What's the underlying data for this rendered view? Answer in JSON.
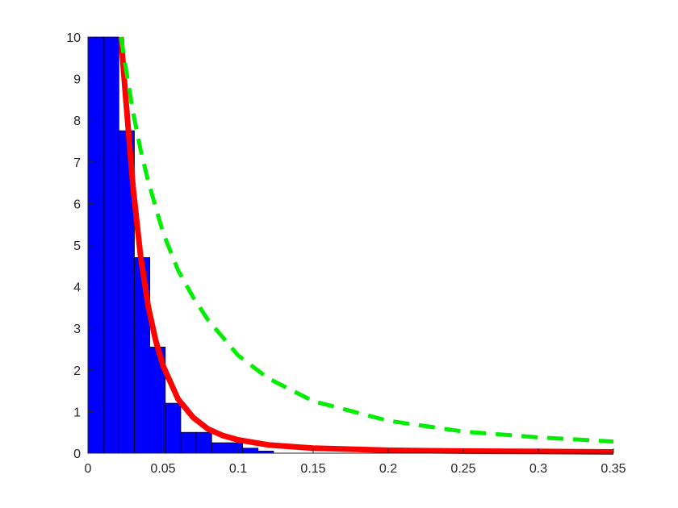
{
  "chart_data": {
    "type": "bar",
    "title": "",
    "xlabel": "",
    "ylabel": "",
    "xlim": [
      0,
      0.35
    ],
    "ylim": [
      0,
      10
    ],
    "grid": false,
    "legend": "none",
    "x_ticks": [
      "0",
      "0.05",
      "0.1",
      "0.15",
      "0.2",
      "0.25",
      "0.3",
      "0.35"
    ],
    "y_ticks": [
      "0",
      "1",
      "2",
      "3",
      "4",
      "5",
      "6",
      "7",
      "8",
      "9",
      "10"
    ],
    "histogram": {
      "bin_width": 0.0103,
      "bin_edges_start": 0,
      "values": [
        10,
        10,
        7.75,
        4.7,
        2.55,
        1.2,
        0.5,
        0.5,
        0.25,
        0.25,
        0.12,
        0.05
      ],
      "color": "#0000ff",
      "edge_color": "#000000"
    },
    "series": [
      {
        "style": "solid",
        "color": "#ff0000",
        "x": [
          0.022,
          0.025,
          0.03,
          0.035,
          0.04,
          0.045,
          0.05,
          0.06,
          0.07,
          0.08,
          0.09,
          0.1,
          0.12,
          0.15,
          0.2,
          0.25,
          0.3,
          0.35
        ],
        "y": [
          10,
          8.6,
          6.4,
          4.75,
          3.55,
          2.72,
          2.1,
          1.3,
          0.86,
          0.58,
          0.42,
          0.32,
          0.2,
          0.12,
          0.07,
          0.05,
          0.04,
          0.03
        ]
      },
      {
        "style": "dashed",
        "color": "#00ee00",
        "x": [
          0.022,
          0.025,
          0.03,
          0.035,
          0.04,
          0.05,
          0.06,
          0.07,
          0.08,
          0.1,
          0.12,
          0.15,
          0.2,
          0.25,
          0.3,
          0.35
        ],
        "y": [
          10,
          9.3,
          8.2,
          7.3,
          6.55,
          5.3,
          4.4,
          3.75,
          3.2,
          2.35,
          1.8,
          1.25,
          0.78,
          0.52,
          0.38,
          0.28
        ]
      }
    ]
  }
}
